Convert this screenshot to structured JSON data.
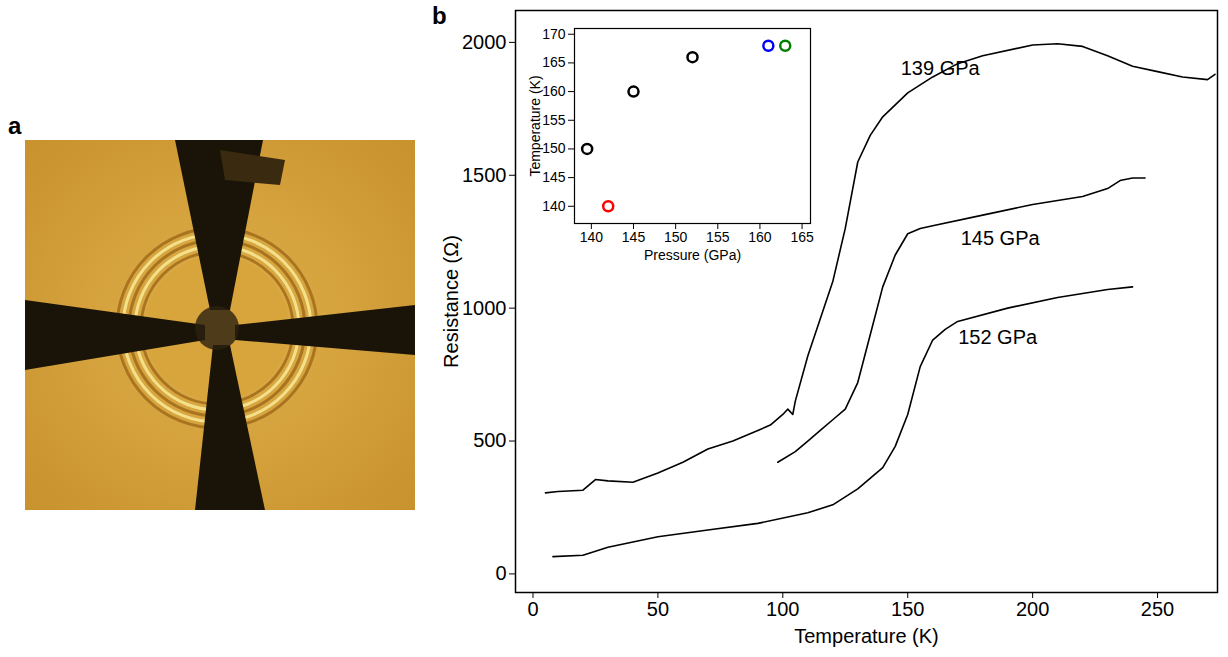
{
  "chart_data": [
    {
      "type": "image",
      "panel": "a"
    },
    {
      "type": "line",
      "panel": "b",
      "x_label": "Temperature (K)",
      "y_label": "Resistance (Ω)",
      "xlim": [
        -7,
        274
      ],
      "xticks": [
        0,
        50,
        100,
        150,
        200,
        250
      ],
      "ylim": [
        -70,
        2120
      ],
      "yticks": [
        0,
        500,
        1000,
        1500,
        2000
      ],
      "grid": false,
      "series": [
        {
          "name": "139 GPa",
          "color": "#000000",
          "label": {
            "x": 163,
            "y": 1900
          },
          "x": [
            5,
            10,
            20,
            25,
            30,
            40,
            50,
            60,
            70,
            80,
            90,
            95,
            100,
            102,
            104,
            105,
            110,
            115,
            120,
            125,
            130,
            135,
            140,
            150,
            160,
            170,
            180,
            200,
            210,
            220,
            230,
            240,
            250,
            260,
            270,
            273
          ],
          "values": [
            305,
            310,
            315,
            355,
            350,
            345,
            380,
            420,
            470,
            500,
            540,
            560,
            600,
            620,
            600,
            650,
            820,
            960,
            1100,
            1300,
            1550,
            1650,
            1720,
            1810,
            1870,
            1920,
            1950,
            1990,
            1995,
            1985,
            1950,
            1910,
            1890,
            1870,
            1860,
            1880
          ]
        },
        {
          "name": "145 GPa",
          "color": "#000000",
          "label": {
            "x": 187,
            "y": 1262
          },
          "x": [
            98,
            105,
            110,
            115,
            120,
            125,
            130,
            135,
            140,
            145,
            150,
            155,
            160,
            180,
            200,
            220,
            230,
            235,
            240,
            245
          ],
          "values": [
            420,
            460,
            500,
            540,
            580,
            620,
            720,
            900,
            1080,
            1200,
            1280,
            1300,
            1310,
            1350,
            1390,
            1420,
            1450,
            1480,
            1490,
            1490
          ]
        },
        {
          "name": "152 GPa",
          "color": "#000000",
          "label": {
            "x": 186,
            "y": 891
          },
          "x": [
            8,
            20,
            30,
            40,
            50,
            70,
            90,
            110,
            120,
            130,
            140,
            145,
            150,
            155,
            160,
            165,
            170,
            190,
            210,
            230,
            240
          ],
          "values": [
            65,
            70,
            100,
            120,
            140,
            165,
            190,
            230,
            260,
            320,
            400,
            480,
            600,
            780,
            880,
            920,
            950,
            1000,
            1040,
            1070,
            1080
          ]
        }
      ]
    },
    {
      "type": "scatter",
      "panel": "b",
      "x_label": "Pressure (GPa)",
      "y_label": "Temperature (K)",
      "xlim": [
        138,
        166
      ],
      "xticks": [
        140,
        145,
        150,
        155,
        160,
        165
      ],
      "ylim": [
        137,
        171
      ],
      "yticks": [
        140,
        145,
        150,
        155,
        160,
        165,
        170
      ],
      "marker": "open_circle",
      "x": [
        139.5,
        142,
        145,
        152,
        161,
        163
      ],
      "values": [
        150,
        140,
        160,
        166,
        168,
        168
      ],
      "colors": [
        "#000000",
        "#ff0000",
        "#000000",
        "#000000",
        "#0000ff",
        "#008000"
      ]
    }
  ]
}
